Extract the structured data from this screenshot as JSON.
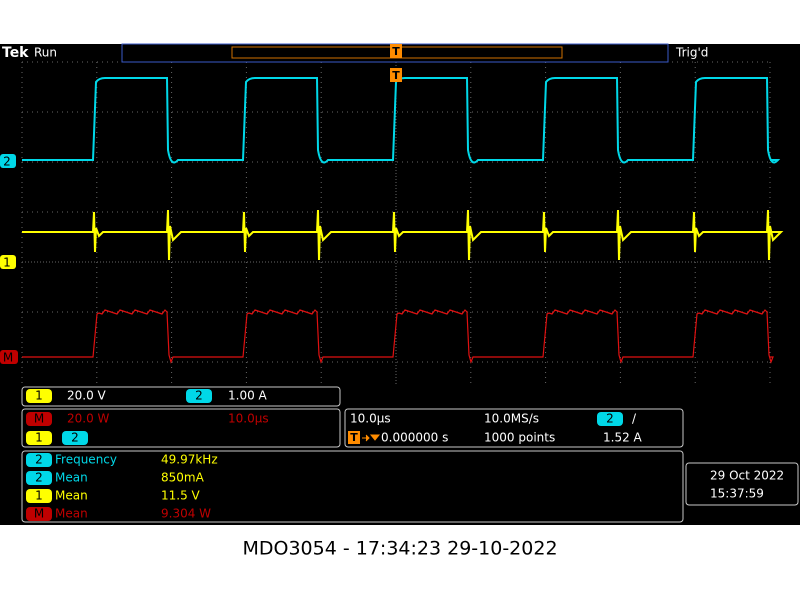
{
  "header": {
    "brand": "Tek",
    "state": "Run",
    "trigger_status": "Trig'd"
  },
  "markers": {
    "trigger_top": "T",
    "trigger_wave": "T"
  },
  "channel_labels": [
    "2",
    "1",
    "M"
  ],
  "scale_readouts": [
    {
      "channel": "1",
      "scale": "20.0 V"
    },
    {
      "channel": "2",
      "scale": "1.00 A"
    }
  ],
  "math_readout": {
    "channel": "M",
    "scale": "20.0 W",
    "time_scale": "10.0µs",
    "sources": [
      "1",
      "2"
    ]
  },
  "timebase": {
    "time_per_div": "10.0µs",
    "sample_rate": "10.0MS/s",
    "trigger_source": "2",
    "trigger_slope": "/",
    "trigger_marker": "T",
    "position": "0.000000 s",
    "record_length": "1000 points",
    "trigger_level": "1.52 A"
  },
  "measurements": [
    {
      "channel": "2",
      "name": "Frequency",
      "value": "49.97kHz"
    },
    {
      "channel": "2",
      "name": "Mean",
      "value": "850mA"
    },
    {
      "channel": "1",
      "name": "Mean",
      "value": "11.5 V"
    },
    {
      "channel": "M",
      "name": "Mean",
      "value": "9.304 W"
    }
  ],
  "datetime": {
    "date": "29 Oct  2022",
    "time": "15:37:59"
  },
  "footer": "MDO3054 - 17:34:23   29-10-2022"
}
